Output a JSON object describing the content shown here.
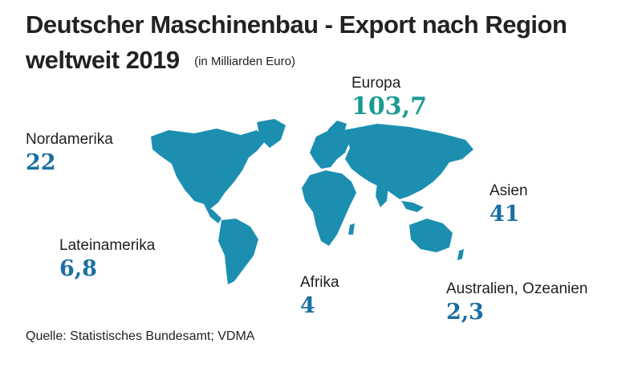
{
  "title_line1": "Deutscher Maschinenbau - Export nach Region",
  "title_line2": "weltweit 2019",
  "unit": "(in Milliarden Euro)",
  "colors": {
    "map_fill": "#1c8fb1",
    "value_blue": "#1a6fa3",
    "value_teal": "#1a9a92"
  },
  "regions": [
    {
      "name": "Europa",
      "value": "103,7",
      "highlight": true
    },
    {
      "name": "Nordamerika",
      "value": "22"
    },
    {
      "name": "Asien",
      "value": "41"
    },
    {
      "name": "Lateinamerika",
      "value": "6,8"
    },
    {
      "name": "Afrika",
      "value": "4"
    },
    {
      "name": "Australien, Ozeanien",
      "value": "2,3"
    }
  ],
  "source": "Quelle: Statistisches Bundesamt; VDMA"
}
